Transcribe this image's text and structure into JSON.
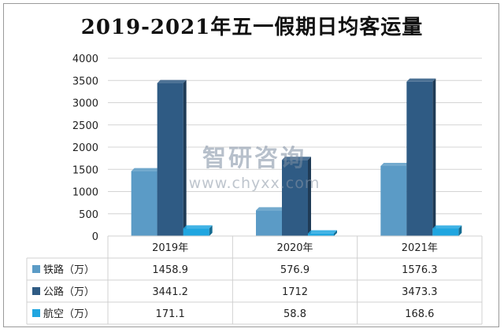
{
  "title": "2019-2021年五一假期日均客运量",
  "watermark": {
    "logo": "智研咨询",
    "url": "www.chyxx.com"
  },
  "chart_data": {
    "type": "bar",
    "title": "2019-2021年五一假期日均客运量",
    "categories": [
      "2019年",
      "2020年",
      "2021年"
    ],
    "series": [
      {
        "name": "铁路（万）",
        "values": [
          1458.9,
          576.9,
          1576.3
        ],
        "color": "#5b9bc6",
        "labels": [
          "1458.9",
          "576.9",
          "1576.3"
        ]
      },
      {
        "name": "公路（万）",
        "values": [
          3441.2,
          1712,
          3473.3
        ],
        "color": "#2f5b84",
        "labels": [
          "3441.2",
          "1712",
          "3473.3"
        ]
      },
      {
        "name": "航空（万）",
        "values": [
          171.1,
          58.8,
          168.6
        ],
        "color": "#20a6e0",
        "labels": [
          "171.1",
          "58.8",
          "168.6"
        ]
      }
    ],
    "ylim": [
      0,
      4000
    ],
    "yticks": [
      "0",
      "500",
      "1000",
      "1500",
      "2000",
      "2500",
      "3000",
      "3500",
      "4000"
    ],
    "grid": true,
    "legend": "data-table"
  }
}
